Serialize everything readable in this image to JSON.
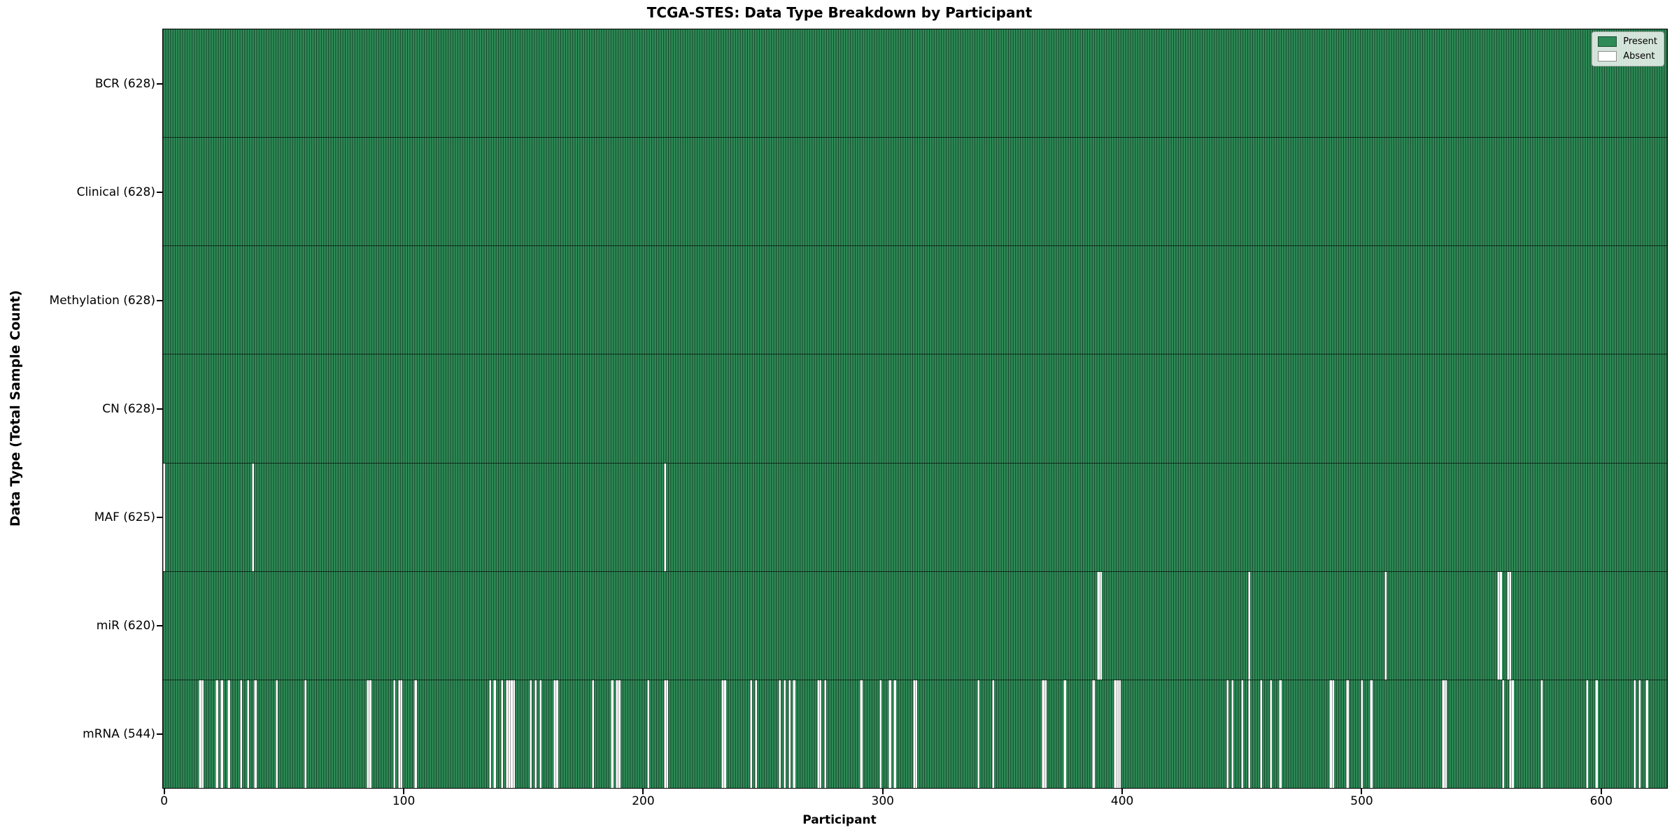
{
  "colors": {
    "present": "#2e8b57",
    "absent": "#ffffff",
    "bar_edge": "rgba(0,0,0,0.5)",
    "spine": "#000000",
    "legend_bg": "rgba(255,255,255,0.8)",
    "legend_border": "#b0b0b0"
  },
  "chart_data": {
    "type": "heatmap",
    "title": "TCGA-STES: Data Type Breakdown by Participant",
    "xlabel": "Participant",
    "ylabel": "Data Type (Total Sample Count)",
    "n_participants": 628,
    "x_ticks": [
      0,
      100,
      200,
      300,
      400,
      500,
      600
    ],
    "grid": false,
    "legend": {
      "position": "upper right",
      "entries": [
        {
          "label": "Present",
          "color": "#2e8b57"
        },
        {
          "label": "Absent",
          "color": "#ffffff"
        }
      ]
    },
    "rows": [
      {
        "key": "bcr",
        "label": "BCR (628)",
        "data_type": "BCR",
        "present_count": 628,
        "absent_participants": []
      },
      {
        "key": "clinical",
        "label": "Clinical (628)",
        "data_type": "Clinical",
        "present_count": 628,
        "absent_participants": []
      },
      {
        "key": "methylation",
        "label": "Methylation (628)",
        "data_type": "Methylation",
        "present_count": 628,
        "absent_participants": []
      },
      {
        "key": "cn",
        "label": "CN (628)",
        "data_type": "CN",
        "present_count": 628,
        "absent_participants": []
      },
      {
        "key": "maf",
        "label": "MAF (625)",
        "data_type": "MAF",
        "present_count": 625,
        "absent_participants": [
          0,
          37,
          209
        ]
      },
      {
        "key": "mir",
        "label": "miR (620)",
        "data_type": "miR",
        "present_count": 620,
        "absent_participants": [
          390,
          391,
          453,
          510,
          557,
          558,
          561,
          562
        ]
      },
      {
        "key": "mrna",
        "label": "mRNA (544)",
        "data_type": "mRNA",
        "present_count": 544,
        "absent_participants": [
          15,
          16,
          22,
          24,
          27,
          32,
          35,
          38,
          47,
          59,
          85,
          86,
          96,
          98,
          99,
          105,
          136,
          138,
          141,
          143,
          144,
          145,
          146,
          153,
          155,
          157,
          163,
          164,
          179,
          187,
          189,
          190,
          202,
          209,
          210,
          233,
          234,
          245,
          247,
          257,
          259,
          261,
          263,
          273,
          274,
          276,
          291,
          299,
          303,
          305,
          313,
          314,
          340,
          346,
          367,
          368,
          376,
          388,
          397,
          398,
          399,
          444,
          446,
          450,
          453,
          458,
          462,
          466,
          487,
          488,
          494,
          500,
          504,
          534,
          535,
          559,
          562,
          563,
          575,
          594,
          598,
          614,
          616,
          619
        ]
      }
    ]
  }
}
